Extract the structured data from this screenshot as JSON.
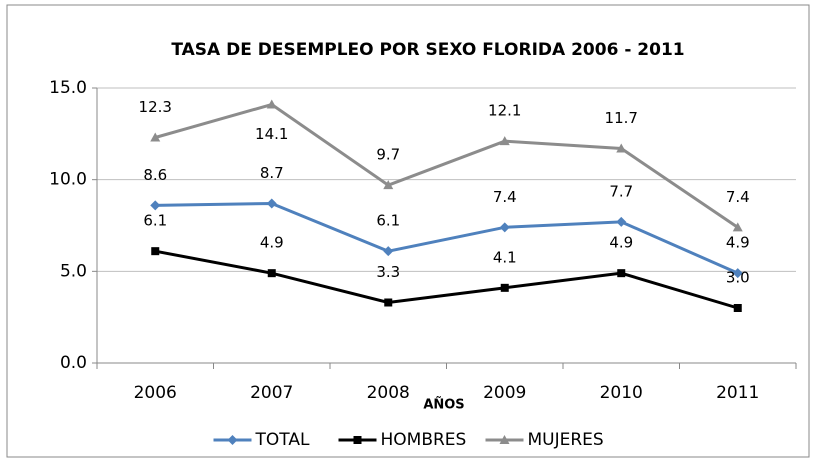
{
  "chart_data": {
    "type": "line",
    "title": "TASA DE DESEMPLEO POR SEXO FLORIDA 2006 - 2011",
    "x_label": "AÑOS",
    "categories": [
      "2006",
      "2007",
      "2008",
      "2009",
      "2010",
      "2011"
    ],
    "series": [
      {
        "name": "TOTAL",
        "color": "#4f81bd",
        "marker": "diamond",
        "values": [
          8.6,
          8.7,
          6.1,
          7.4,
          7.7,
          4.9
        ],
        "value_labels": [
          "8.6",
          "8.7",
          "6.1",
          "7.4",
          "7.7",
          "4.9"
        ]
      },
      {
        "name": "HOMBRES",
        "color": "#000000",
        "marker": "square",
        "values": [
          6.1,
          4.9,
          3.3,
          4.1,
          4.9,
          3.0
        ],
        "value_labels": [
          "6.1",
          "4.9",
          "3.3",
          "4.1",
          "4.9",
          "3.0"
        ]
      },
      {
        "name": "MUJERES",
        "color": "#8c8c8c",
        "marker": "triangle",
        "values": [
          12.3,
          14.1,
          9.7,
          12.1,
          11.7,
          7.4
        ],
        "value_labels": [
          "12.3",
          "14.1",
          "9.7",
          "12.1",
          "11.7",
          "7.4"
        ]
      }
    ],
    "ylim": [
      0,
      15
    ],
    "yticks": [
      {
        "value": 0,
        "label": "0.0"
      },
      {
        "value": 5,
        "label": "5.0"
      },
      {
        "value": 10,
        "label": "10.0"
      },
      {
        "value": 15,
        "label": "15.0"
      }
    ],
    "grid": true,
    "legend": "bottom"
  }
}
